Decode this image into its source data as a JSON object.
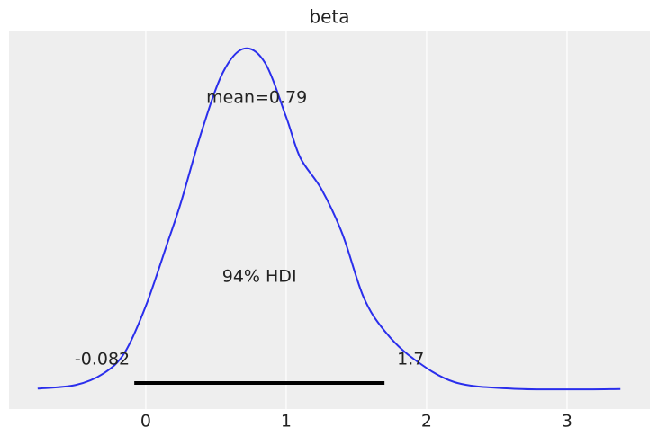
{
  "chart_data": {
    "type": "kde",
    "title": "beta",
    "x": [
      -0.77,
      -0.5,
      -0.3,
      -0.15,
      0,
      0.15,
      0.25,
      0.4,
      0.55,
      0.7,
      0.85,
      1.0,
      1.1,
      1.25,
      1.4,
      1.55,
      1.7,
      1.9,
      2.2,
      2.6,
      3.0,
      3.38
    ],
    "values": [
      0.002,
      0.011,
      0.04,
      0.092,
      0.208,
      0.361,
      0.466,
      0.646,
      0.791,
      0.85,
      0.814,
      0.679,
      0.578,
      0.5,
      0.388,
      0.231,
      0.146,
      0.078,
      0.018,
      0.002,
      0.0,
      0.001
    ],
    "color": "#2a2eec",
    "xlim": [
      -0.974,
      3.59
    ],
    "ylim": [
      -0.049,
      0.895
    ],
    "xticks": [
      0,
      1,
      2,
      3
    ],
    "grid": true,
    "mean": {
      "value": 0.79,
      "label": "mean=0.79"
    },
    "hdi": {
      "label": "94% HDI",
      "values": [
        -0.082,
        1.7
      ],
      "color": "#000000"
    }
  }
}
